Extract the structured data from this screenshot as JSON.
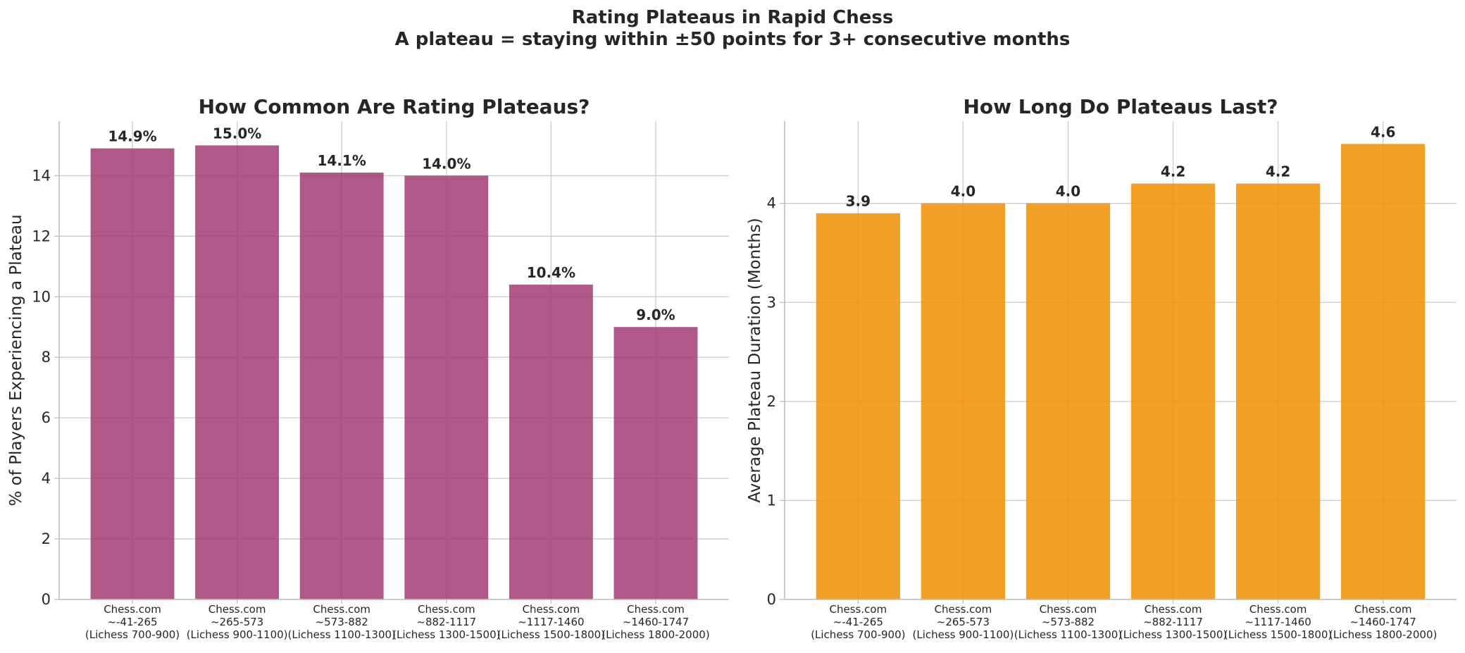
{
  "figure": {
    "title_line1": "Rating Plateaus in Rapid Chess",
    "title_line2": "A plateau = staying within ±50 points for 3+ consecutive months"
  },
  "chart_data": [
    {
      "type": "bar",
      "title": "How Common Are Rating Plateaus?",
      "xlabel": "",
      "ylabel": "% of Players Experiencing a Plateau",
      "categories": [
        [
          "Chess.com",
          "~-41-265",
          "(Lichess 700-900)"
        ],
        [
          "Chess.com",
          "~265-573",
          "(Lichess 900-1100)"
        ],
        [
          "Chess.com",
          "~573-882",
          "(Lichess 1100-1300)"
        ],
        [
          "Chess.com",
          "~882-1117",
          "(Lichess 1300-1500)"
        ],
        [
          "Chess.com",
          "~1117-1460",
          "(Lichess 1500-1800)"
        ],
        [
          "Chess.com",
          "~1460-1747",
          "(Lichess 1800-2000)"
        ]
      ],
      "values": [
        14.9,
        15.0,
        14.1,
        14.0,
        10.4,
        9.0
      ],
      "value_labels": [
        "14.9%",
        "15.0%",
        "14.1%",
        "14.0%",
        "10.4%",
        "9.0%"
      ],
      "ylim": [
        0,
        15.8
      ],
      "yticks": [
        0,
        2,
        4,
        6,
        8,
        10,
        12,
        14
      ],
      "color": "#a23b72",
      "grid": true
    },
    {
      "type": "bar",
      "title": "How Long Do Plateaus Last?",
      "xlabel": "",
      "ylabel": "Average Plateau Duration (Months)",
      "categories": [
        [
          "Chess.com",
          "~-41-265",
          "(Lichess 700-900)"
        ],
        [
          "Chess.com",
          "~265-573",
          "(Lichess 900-1100)"
        ],
        [
          "Chess.com",
          "~573-882",
          "(Lichess 1100-1300)"
        ],
        [
          "Chess.com",
          "~882-1117",
          "(Lichess 1300-1500)"
        ],
        [
          "Chess.com",
          "~1117-1460",
          "(Lichess 1500-1800)"
        ],
        [
          "Chess.com",
          "~1460-1747",
          "(Lichess 1800-2000)"
        ]
      ],
      "values": [
        3.9,
        4.0,
        4.0,
        4.2,
        4.2,
        4.6
      ],
      "value_labels": [
        "3.9",
        "4.0",
        "4.0",
        "4.2",
        "4.2",
        "4.6"
      ],
      "ylim": [
        0,
        4.83
      ],
      "yticks": [
        0,
        1,
        2,
        3,
        4
      ],
      "color": "#f18f01",
      "grid": true
    }
  ]
}
